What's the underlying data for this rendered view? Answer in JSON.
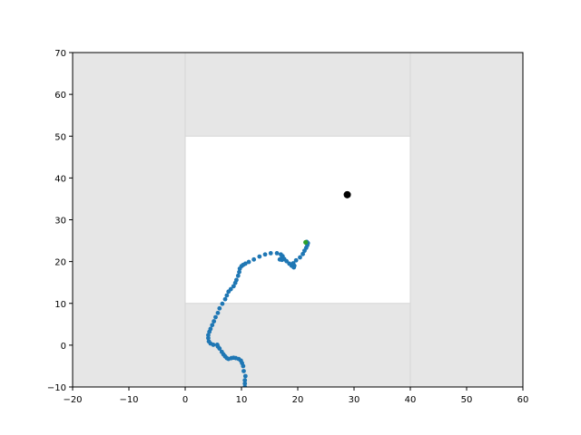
{
  "colors": {
    "background": "#ffffff",
    "shaded_region": "#e6e6e6",
    "boundary_lines": "#d6d6d6",
    "path_points": "#1f77b4",
    "start_point": "#2ca02c",
    "target_point": "#000000",
    "axes": "#000000"
  },
  "chart_data": {
    "type": "scatter",
    "title": "",
    "xlabel": "",
    "ylabel": "",
    "xlim": [
      -20,
      60
    ],
    "ylim": [
      -10,
      70
    ],
    "x_ticks": [
      -20,
      -10,
      0,
      10,
      20,
      30,
      40,
      50,
      60
    ],
    "y_ticks": [
      -10,
      0,
      10,
      20,
      30,
      40,
      50,
      60,
      70
    ],
    "x_tick_labels": [
      "−20",
      "−10",
      "0",
      "10",
      "20",
      "30",
      "40",
      "50",
      "60"
    ],
    "y_tick_labels": [
      "−10",
      "0",
      "10",
      "20",
      "30",
      "40",
      "50",
      "60",
      "70"
    ],
    "grid": false,
    "regions": {
      "free_area": {
        "x": [
          0,
          40
        ],
        "y": [
          10,
          50
        ]
      },
      "boundary_x_lines": [
        0,
        40
      ],
      "boundary_y_lines": [
        10,
        50
      ]
    },
    "target": {
      "x": 28.8,
      "y": 36.0
    },
    "start": {
      "x": 21.4,
      "y": 24.6
    },
    "series": [
      {
        "values": [
          {
            "x": 10.6,
            "y": -10.0
          },
          {
            "x": 10.6,
            "y": -9.2
          },
          {
            "x": 10.6,
            "y": -8.4
          },
          {
            "x": 10.7,
            "y": -7.4
          },
          {
            "x": 10.4,
            "y": -6.2
          },
          {
            "x": 10.3,
            "y": -5.0
          },
          {
            "x": 10.1,
            "y": -4.3
          },
          {
            "x": 9.9,
            "y": -3.7
          },
          {
            "x": 9.5,
            "y": -3.3
          },
          {
            "x": 9.0,
            "y": -3.1
          },
          {
            "x": 8.6,
            "y": -3.0
          },
          {
            "x": 8.2,
            "y": -3.1
          },
          {
            "x": 7.7,
            "y": -3.3
          },
          {
            "x": 7.4,
            "y": -3.1
          },
          {
            "x": 7.1,
            "y": -2.7
          },
          {
            "x": 6.8,
            "y": -2.2
          },
          {
            "x": 6.5,
            "y": -1.6
          },
          {
            "x": 6.1,
            "y": -0.8
          },
          {
            "x": 5.8,
            "y": -0.3
          },
          {
            "x": 5.7,
            "y": 0.1
          },
          {
            "x": 5.0,
            "y": 0.1
          },
          {
            "x": 4.5,
            "y": 0.4
          },
          {
            "x": 4.2,
            "y": 0.9
          },
          {
            "x": 4.1,
            "y": 1.7
          },
          {
            "x": 4.1,
            "y": 2.4
          },
          {
            "x": 4.3,
            "y": 3.2
          },
          {
            "x": 4.5,
            "y": 3.9
          },
          {
            "x": 4.8,
            "y": 4.8
          },
          {
            "x": 5.1,
            "y": 5.7
          },
          {
            "x": 5.4,
            "y": 6.7
          },
          {
            "x": 5.8,
            "y": 7.7
          },
          {
            "x": 6.1,
            "y": 8.8
          },
          {
            "x": 6.6,
            "y": 9.9
          },
          {
            "x": 7.1,
            "y": 11.0
          },
          {
            "x": 7.4,
            "y": 11.9
          },
          {
            "x": 7.7,
            "y": 12.8
          },
          {
            "x": 8.1,
            "y": 13.4
          },
          {
            "x": 8.6,
            "y": 14.1
          },
          {
            "x": 8.9,
            "y": 14.9
          },
          {
            "x": 9.1,
            "y": 15.6
          },
          {
            "x": 9.4,
            "y": 16.6
          },
          {
            "x": 9.6,
            "y": 17.5
          },
          {
            "x": 9.7,
            "y": 18.3
          },
          {
            "x": 10.0,
            "y": 18.9
          },
          {
            "x": 10.3,
            "y": 19.2
          },
          {
            "x": 10.7,
            "y": 19.5
          },
          {
            "x": 11.3,
            "y": 19.9
          },
          {
            "x": 12.2,
            "y": 20.5
          },
          {
            "x": 13.2,
            "y": 21.2
          },
          {
            "x": 14.2,
            "y": 21.7
          },
          {
            "x": 15.2,
            "y": 22.0
          },
          {
            "x": 16.3,
            "y": 22.0
          },
          {
            "x": 17.0,
            "y": 21.7
          },
          {
            "x": 17.3,
            "y": 21.3
          },
          {
            "x": 17.4,
            "y": 20.8
          },
          {
            "x": 17.2,
            "y": 20.4
          },
          {
            "x": 16.8,
            "y": 20.5
          },
          {
            "x": 17.2,
            "y": 21.0
          },
          {
            "x": 17.6,
            "y": 20.6
          },
          {
            "x": 18.0,
            "y": 20.1
          },
          {
            "x": 18.5,
            "y": 19.5
          },
          {
            "x": 18.9,
            "y": 19.0
          },
          {
            "x": 19.3,
            "y": 18.6
          },
          {
            "x": 19.4,
            "y": 19.0
          },
          {
            "x": 19.2,
            "y": 19.6
          },
          {
            "x": 19.7,
            "y": 20.3
          },
          {
            "x": 20.4,
            "y": 21.0
          },
          {
            "x": 20.9,
            "y": 21.8
          },
          {
            "x": 21.2,
            "y": 22.6
          },
          {
            "x": 21.5,
            "y": 23.3
          },
          {
            "x": 21.7,
            "y": 23.9
          },
          {
            "x": 21.8,
            "y": 24.4
          },
          {
            "x": 21.6,
            "y": 24.7
          }
        ]
      }
    ]
  }
}
